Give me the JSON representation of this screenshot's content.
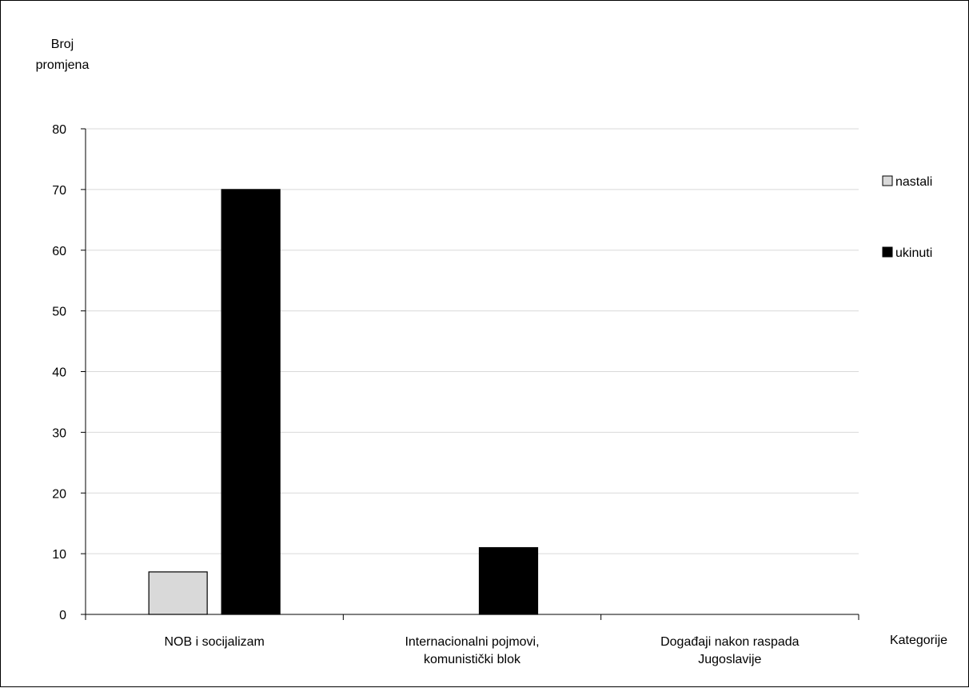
{
  "chart_data": {
    "type": "bar",
    "title": "",
    "xlabel": "Kategorije",
    "ylabel_lines": [
      "Broj",
      "promjena"
    ],
    "categories": [
      [
        "NOB i socijalizam"
      ],
      [
        "Internacionalni pojmovi,",
        "komunistički blok"
      ],
      [
        "Događaji nakon raspada",
        "Jugoslavije"
      ]
    ],
    "series": [
      {
        "name": "nastali",
        "color": "#d9d9d9",
        "values": [
          7,
          0,
          0
        ]
      },
      {
        "name": "ukinuti",
        "color": "#000000",
        "values": [
          70,
          11,
          0
        ]
      }
    ],
    "ylim": [
      0,
      80
    ],
    "yticks": [
      0,
      10,
      20,
      30,
      40,
      50,
      60,
      70,
      80
    ],
    "grid": true,
    "legend_position": "right"
  }
}
